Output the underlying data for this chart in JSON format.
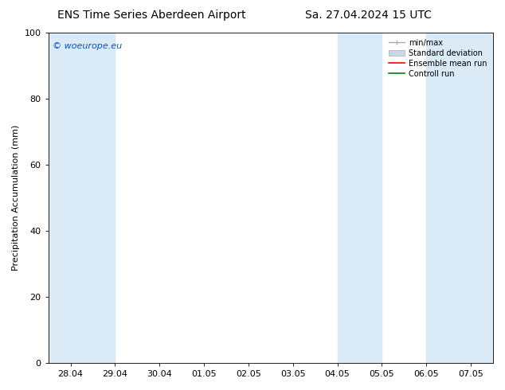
{
  "title_left": "ENS Time Series Aberdeen Airport",
  "title_right": "Sa. 27.04.2024 15 UTC",
  "ylabel": "Precipitation Accumulation (mm)",
  "watermark": "© woeurope.eu",
  "watermark_color": "#0055cc",
  "ylim": [
    0,
    100
  ],
  "yticks": [
    0,
    20,
    40,
    60,
    80,
    100
  ],
  "xtick_labels": [
    "28.04",
    "29.04",
    "30.04",
    "01.05",
    "02.05",
    "03.05",
    "04.05",
    "05.05",
    "06.05",
    "07.05"
  ],
  "shade_color": "#daeaf6",
  "legend_labels": [
    "min/max",
    "Standard deviation",
    "Ensemble mean run",
    "Controll run"
  ],
  "legend_line_color": "#aaaaaa",
  "legend_std_color": "#c8d8e8",
  "legend_ens_color": "#ff0000",
  "legend_ctrl_color": "#008000",
  "background_color": "#ffffff",
  "title_fontsize": 10,
  "ylabel_fontsize": 8,
  "tick_fontsize": 8,
  "legend_fontsize": 7,
  "watermark_fontsize": 8
}
